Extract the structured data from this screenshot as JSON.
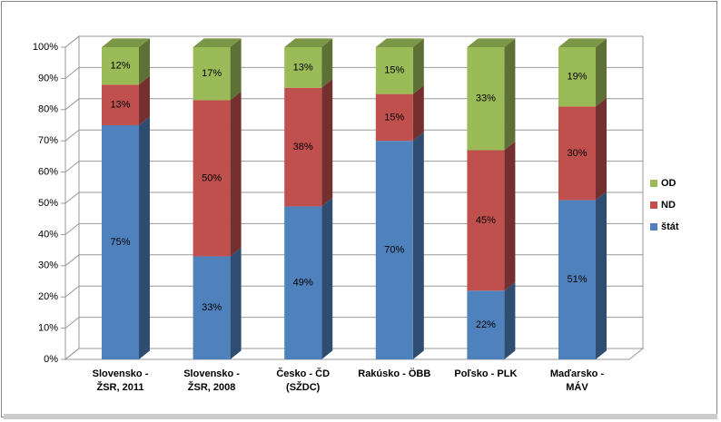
{
  "chart_data": {
    "type": "bar3d_stacked",
    "categories": [
      "Slovensko -\nŽSR, 2011",
      "Slovensko -\nŽSR, 2008",
      "Česko - ČD\n(SŽDC)",
      "Rakúsko - ÖBB",
      "Poľsko - PLK",
      "Maďarsko -\nMÁV"
    ],
    "series": [
      {
        "name": "štát",
        "color": "#4f81bd",
        "values": [
          75,
          33,
          49,
          70,
          22,
          51
        ],
        "value_labels": [
          "75%",
          "33%",
          "49%",
          "70%",
          "22%",
          "51%"
        ]
      },
      {
        "name": "ND",
        "color": "#c0504d",
        "values": [
          13,
          50,
          38,
          15,
          45,
          30
        ],
        "value_labels": [
          "13%",
          "50%",
          "38%",
          "15%",
          "45%",
          "30%"
        ]
      },
      {
        "name": "OD",
        "color": "#9bbb59",
        "values": [
          12,
          17,
          13,
          15,
          33,
          19
        ],
        "value_labels": [
          "12%",
          "17%",
          "13%",
          "15%",
          "33%",
          "19%"
        ]
      }
    ],
    "ylim": [
      0,
      100
    ],
    "yticks": [
      {
        "value": 0,
        "label": "0%"
      },
      {
        "value": 10,
        "label": "10%"
      },
      {
        "value": 20,
        "label": "20%"
      },
      {
        "value": 30,
        "label": "30%"
      },
      {
        "value": 40,
        "label": "40%"
      },
      {
        "value": 50,
        "label": "50%"
      },
      {
        "value": 60,
        "label": "60%"
      },
      {
        "value": 70,
        "label": "70%"
      },
      {
        "value": 80,
        "label": "80%"
      },
      {
        "value": 90,
        "label": "90%"
      },
      {
        "value": 100,
        "label": "100%"
      }
    ],
    "grid": true,
    "legend": "right"
  }
}
